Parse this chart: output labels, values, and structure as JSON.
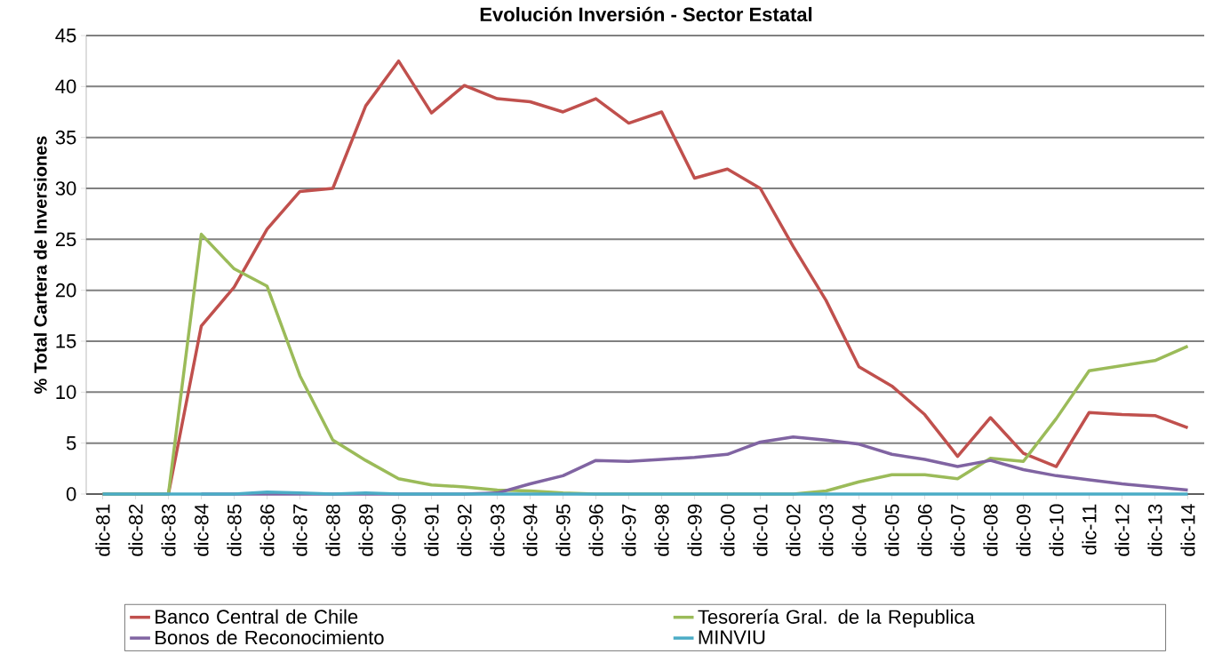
{
  "chart_data": {
    "type": "line",
    "title": "Evolución Inversión - Sector Estatal",
    "ylabel": "% Total Cartera de Inversiones",
    "categories": [
      "dic-81",
      "dic-82",
      "dic-83",
      "dic-84",
      "dic-85",
      "dic-86",
      "dic-87",
      "dic-88",
      "dic-89",
      "dic-90",
      "dic-91",
      "dic-92",
      "dic-93",
      "dic-94",
      "dic-95",
      "dic-96",
      "dic-97",
      "dic-98",
      "dic-99",
      "dic-00",
      "dic-01",
      "dic-02",
      "dic-03",
      "dic-04",
      "dic-05",
      "dic-06",
      "dic-07",
      "dic-08",
      "dic-09",
      "dic-10",
      "dic-11",
      "dic-12",
      "dic-13",
      "dic-14"
    ],
    "series": [
      {
        "name": "Banco Central de Chile",
        "color": "#c0504d",
        "values": [
          0,
          0,
          0,
          16.5,
          20.3,
          26,
          29.7,
          30,
          38.1,
          42.5,
          37.4,
          40.1,
          38.8,
          38.5,
          37.5,
          38.8,
          36.4,
          37.5,
          31,
          31.9,
          30,
          24.3,
          19,
          12.5,
          10.6,
          7.8,
          3.7,
          7.5,
          4,
          2.7,
          8,
          7.8,
          7.7,
          6.5
        ]
      },
      {
        "name": "Tesorería Gral. de la Republica",
        "color": "#9bbb59",
        "values": [
          0,
          0,
          0,
          25.5,
          22.1,
          20.4,
          11.6,
          5.3,
          3.3,
          1.5,
          0.9,
          0.7,
          0.4,
          0.3,
          0.1,
          0,
          0,
          0,
          0,
          0,
          0,
          0,
          0.3,
          1.2,
          1.9,
          1.9,
          1.5,
          3.5,
          3.2,
          7.4,
          12.1,
          12.6,
          13.1,
          14.5
        ]
      },
      {
        "name": "Bonos de Reconocimiento",
        "color": "#8064a2",
        "values": [
          null,
          null,
          null,
          0,
          0,
          0,
          0,
          0,
          0,
          0,
          0,
          0,
          0.1,
          1,
          1.8,
          3.3,
          3.2,
          3.4,
          3.6,
          3.9,
          5.1,
          5.6,
          5.3,
          4.9,
          3.9,
          3.4,
          2.7,
          3.3,
          2.4,
          1.8,
          1.4,
          1,
          0.7,
          0.4
        ]
      },
      {
        "name": "MINVIU",
        "color": "#4bacc6",
        "values": [
          0,
          0,
          0,
          0,
          0,
          0.2,
          0.1,
          0,
          0.1,
          0,
          0,
          0,
          0,
          0,
          0,
          0,
          0,
          0,
          0,
          0,
          0,
          0,
          0,
          0,
          0,
          0,
          0,
          0,
          0,
          0,
          0,
          0,
          0,
          0
        ]
      }
    ],
    "ylim": [
      0,
      45
    ],
    "yticks": [
      0,
      5,
      10,
      15,
      20,
      25,
      30,
      35,
      40,
      45
    ],
    "grid": "y",
    "legend": "bottom",
    "line_style": "solid"
  }
}
